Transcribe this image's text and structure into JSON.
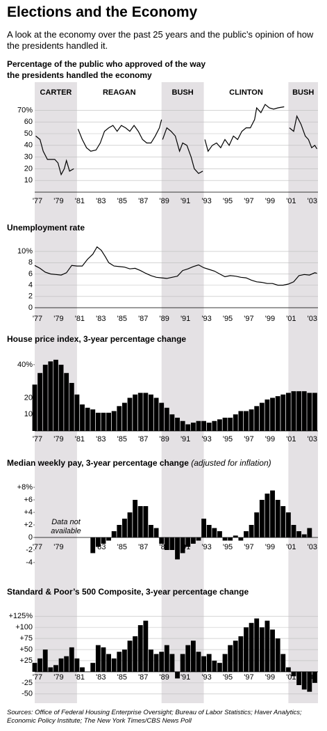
{
  "title": "Elections and the Economy",
  "subtitle": "A look at the economy over the past 25 years and the public’s opinion of how the presidents handled it.",
  "sources": "Sources: Office of Federal Housing Enterprise Oversight; Bureau of Labor Statistics; Haver Analytics; Economic Policy Institute; The New York Times/CBS News Poll",
  "chart_data": [
    {
      "type": "line",
      "title": "Percentage of the public who approved of the way the presidents handled the economy",
      "presidents": [
        "CARTER",
        "REAGAN",
        "BUSH",
        "CLINTON",
        "BUSH"
      ],
      "color": "#000000",
      "grid": true,
      "xlim": [
        1977,
        2003.8
      ],
      "ylim": [
        0,
        75
      ],
      "yticks": [
        {
          "value": 70,
          "label": "70%"
        },
        60,
        50,
        40,
        30,
        20,
        10
      ],
      "xticks": [
        {
          "value": 1977,
          "label": "'77"
        },
        {
          "value": 1979,
          "label": "'79"
        },
        {
          "value": 1981,
          "label": "'81"
        },
        {
          "value": 1983,
          "label": "'83"
        },
        {
          "value": 1985,
          "label": "'85"
        },
        {
          "value": 1987,
          "label": "'87"
        },
        {
          "value": 1989,
          "label": "'89"
        },
        {
          "value": 1991,
          "label": "'91"
        },
        {
          "value": 1993,
          "label": "'93"
        },
        {
          "value": 1995,
          "label": "'95"
        },
        {
          "value": 1997,
          "label": "'97"
        },
        {
          "value": 1999,
          "label": "'99"
        },
        {
          "value": 2001,
          "label": "'01"
        },
        {
          "value": 2003,
          "label": "'03"
        }
      ],
      "x": [
        1977.1,
        1977.5,
        1977.8,
        1978.2,
        1978.6,
        1978.9,
        1979.2,
        1979.5,
        1979.8,
        1980.0,
        1980.3,
        1980.7,
        1980.9,
        1981.1,
        1981.5,
        1981.9,
        1982.3,
        1982.8,
        1983.2,
        1983.6,
        1984.0,
        1984.4,
        1984.8,
        1985.2,
        1985.6,
        1986.0,
        1986.4,
        1986.8,
        1987.2,
        1987.6,
        1988.0,
        1988.4,
        1988.8,
        1989.0,
        1989.05,
        1989.1,
        1989.5,
        1989.9,
        1990.3,
        1990.7,
        1991.0,
        1991.4,
        1991.8,
        1992.1,
        1992.5,
        1992.9,
        1993.0,
        1993.1,
        1993.4,
        1993.8,
        1994.2,
        1994.6,
        1995.0,
        1995.4,
        1995.8,
        1996.2,
        1996.6,
        1997.0,
        1997.4,
        1997.8,
        1998.0,
        1998.4,
        1998.8,
        1999.2,
        1999.6,
        2000.0,
        2000.6,
        2000.9,
        2001.1,
        2001.5,
        2001.8,
        2002.2,
        2002.6,
        2002.9,
        2003.2,
        2003.5,
        2003.7
      ],
      "values": [
        48,
        45,
        35,
        28,
        28,
        28,
        25,
        15,
        20,
        27,
        18,
        20,
        null,
        54,
        45,
        38,
        35,
        36,
        42,
        52,
        55,
        57,
        52,
        57,
        55,
        52,
        57,
        52,
        45,
        42,
        42,
        48,
        55,
        62,
        null,
        45,
        55,
        52,
        48,
        35,
        42,
        40,
        30,
        20,
        16,
        18,
        null,
        45,
        35,
        40,
        42,
        38,
        45,
        40,
        48,
        45,
        52,
        55,
        55,
        62,
        72,
        68,
        75,
        72,
        71,
        72,
        73,
        null,
        55,
        52,
        65,
        58,
        48,
        45,
        38,
        40,
        37
      ]
    },
    {
      "type": "line",
      "title": "Unemployment rate",
      "color": "#000000",
      "grid": true,
      "xlim": [
        1977,
        2003.8
      ],
      "ylim": [
        0,
        11
      ],
      "yticks": [
        {
          "value": 10,
          "label": "10%"
        },
        8,
        6,
        4,
        2,
        0
      ],
      "xticks": [
        {
          "value": 1977,
          "label": "'77"
        },
        {
          "value": 1979,
          "label": "'79"
        },
        {
          "value": 1981,
          "label": "'81"
        },
        {
          "value": 1983,
          "label": "'83"
        },
        {
          "value": 1985,
          "label": "'85"
        },
        {
          "value": 1987,
          "label": "'87"
        },
        {
          "value": 1989,
          "label": "'89"
        },
        {
          "value": 1991,
          "label": "'91"
        },
        {
          "value": 1993,
          "label": "'93"
        },
        {
          "value": 1995,
          "label": "'95"
        },
        {
          "value": 1997,
          "label": "'97"
        },
        {
          "value": 1999,
          "label": "'99"
        },
        {
          "value": 2001,
          "label": "'01"
        },
        {
          "value": 2003,
          "label": "'03"
        }
      ],
      "x": [
        1977,
        1977.5,
        1978,
        1978.5,
        1979,
        1979.5,
        1980,
        1980.5,
        1981,
        1981.5,
        1982,
        1982.5,
        1982.9,
        1983.3,
        1983.7,
        1984,
        1984.5,
        1985,
        1985.5,
        1986,
        1986.5,
        1987,
        1987.5,
        1988,
        1988.5,
        1989,
        1989.5,
        1990,
        1990.5,
        1991,
        1991.5,
        1992,
        1992.5,
        1993,
        1993.5,
        1994,
        1994.5,
        1995,
        1995.5,
        1996,
        1996.5,
        1997,
        1997.5,
        1998,
        1998.5,
        1999,
        1999.5,
        2000,
        2000.5,
        2001,
        2001.5,
        2002,
        2002.5,
        2003,
        2003.5,
        2003.7
      ],
      "values": [
        7.5,
        7.0,
        6.3,
        6.0,
        5.9,
        5.8,
        6.2,
        7.5,
        7.4,
        7.4,
        8.6,
        9.5,
        10.8,
        10.2,
        9.0,
        8.0,
        7.4,
        7.3,
        7.2,
        6.9,
        7.0,
        6.6,
        6.1,
        5.7,
        5.4,
        5.3,
        5.2,
        5.4,
        5.6,
        6.6,
        6.9,
        7.3,
        7.6,
        7.1,
        6.8,
        6.5,
        6.0,
        5.5,
        5.7,
        5.6,
        5.4,
        5.3,
        4.9,
        4.6,
        4.5,
        4.3,
        4.3,
        4.0,
        4.0,
        4.2,
        4.6,
        5.7,
        5.9,
        5.8,
        6.2,
        6.1
      ]
    },
    {
      "type": "bar",
      "title": "House price index, 3-year percentage change",
      "color": "#000000",
      "grid": false,
      "xlim": [
        1977,
        2003.8
      ],
      "ylim": [
        0,
        45
      ],
      "yticks": [
        {
          "value": 40,
          "label": "40%"
        },
        20,
        10
      ],
      "xticks": [
        {
          "value": 1977,
          "label": "'77"
        },
        {
          "value": 1979,
          "label": "'79"
        },
        {
          "value": 1981,
          "label": "'81"
        },
        {
          "value": 1983,
          "label": "'83"
        },
        {
          "value": 1985,
          "label": "'85"
        },
        {
          "value": 1987,
          "label": "'87"
        },
        {
          "value": 1989,
          "label": "'89"
        },
        {
          "value": 1991,
          "label": "'91"
        },
        {
          "value": 1993,
          "label": "'93"
        },
        {
          "value": 1995,
          "label": "'95"
        },
        {
          "value": 1997,
          "label": "'97"
        },
        {
          "value": 1999,
          "label": "'99"
        },
        {
          "value": 2001,
          "label": "'01"
        },
        {
          "value": 2003,
          "label": "'03"
        }
      ],
      "x": [
        1977,
        1977.5,
        1978,
        1978.5,
        1979,
        1979.5,
        1980,
        1980.5,
        1981,
        1981.5,
        1982,
        1982.5,
        1983,
        1983.5,
        1984,
        1984.5,
        1985,
        1985.5,
        1986,
        1986.5,
        1987,
        1987.5,
        1988,
        1988.5,
        1989,
        1989.5,
        1990,
        1990.5,
        1991,
        1991.5,
        1992,
        1992.5,
        1993,
        1993.5,
        1994,
        1994.5,
        1995,
        1995.5,
        1996,
        1996.5,
        1997,
        1997.5,
        1998,
        1998.5,
        1999,
        1999.5,
        2000,
        2000.5,
        2001,
        2001.5,
        2002,
        2002.5,
        2003,
        2003.5
      ],
      "values": [
        28,
        35,
        40,
        42,
        43,
        40,
        35,
        29,
        22,
        16,
        14,
        13,
        11,
        11,
        11,
        12,
        15,
        17,
        20,
        22,
        23,
        23,
        22,
        20,
        17,
        14,
        10,
        8,
        6,
        4,
        5,
        6,
        6,
        5,
        6,
        7,
        8,
        8,
        10,
        12,
        12,
        13,
        15,
        17,
        19,
        20,
        21,
        22,
        23,
        24,
        24,
        24,
        23,
        23
      ]
    },
    {
      "type": "bar",
      "title": "Median weekly pay, 3-year percentage change",
      "title_note": "(adjusted for inflation)",
      "annotation": "Data not available",
      "color": "#000000",
      "grid": false,
      "xlim": [
        1977,
        2003.8
      ],
      "ylim": [
        -5,
        9
      ],
      "yticks": [
        {
          "value": 8,
          "label": "+8%"
        },
        {
          "value": 6,
          "label": "+6"
        },
        {
          "value": 4,
          "label": "+4"
        },
        {
          "value": 2,
          "label": "+2"
        },
        0,
        {
          "value": -2,
          "label": "-2"
        },
        {
          "value": -4,
          "label": "-4"
        }
      ],
      "xticks": [
        {
          "value": 1977,
          "label": "'77"
        },
        {
          "value": 1979,
          "label": "'79"
        },
        {
          "value": 1983,
          "label": "'83"
        },
        {
          "value": 1985,
          "label": "'85"
        },
        {
          "value": 1987,
          "label": "'87"
        },
        {
          "value": 1989,
          "label": "'89"
        },
        {
          "value": 1991,
          "label": "'91"
        },
        {
          "value": 1993,
          "label": "'93"
        },
        {
          "value": 1995,
          "label": "'95"
        },
        {
          "value": 1997,
          "label": "'97"
        },
        {
          "value": 1999,
          "label": "'99"
        },
        {
          "value": 2001,
          "label": "'01"
        },
        {
          "value": 2003,
          "label": "'03"
        }
      ],
      "x": [
        1982.5,
        1983,
        1983.5,
        1984,
        1984.5,
        1985,
        1985.5,
        1986,
        1986.5,
        1987,
        1987.5,
        1988,
        1988.5,
        1989,
        1989.5,
        1990,
        1990.5,
        1991,
        1991.5,
        1992,
        1992.5,
        1993,
        1993.5,
        1994,
        1994.5,
        1995,
        1995.5,
        1996,
        1996.5,
        1997,
        1997.5,
        1998,
        1998.5,
        1999,
        1999.5,
        2000,
        2000.5,
        2001,
        2001.5,
        2002,
        2002.5,
        2003
      ],
      "values": [
        -2.5,
        -1.5,
        -1,
        -0.5,
        1,
        2,
        3,
        4,
        6,
        5,
        5,
        2,
        1.5,
        -1,
        -2,
        -2,
        -3.5,
        -2.5,
        -1.5,
        -1,
        -0.5,
        3,
        2,
        1.5,
        1,
        -0.5,
        -0.5,
        0.3,
        -0.5,
        1,
        2,
        4,
        6,
        7,
        7.5,
        6,
        5,
        4,
        2,
        1,
        0.5,
        1.5
      ]
    },
    {
      "type": "bar",
      "title": "Standard & Poor’s 500 Composite, 3-year percentage change",
      "color": "#000000",
      "grid": true,
      "xlim": [
        1977,
        2003.8
      ],
      "ylim": [
        -55,
        130
      ],
      "yticks": [
        {
          "value": 125,
          "label": "+125%"
        },
        {
          "value": 100,
          "label": "+100"
        },
        {
          "value": 75,
          "label": "+75"
        },
        {
          "value": 50,
          "label": "+50"
        },
        {
          "value": 25,
          "label": "+25"
        },
        {
          "value": -25,
          "label": "-25"
        },
        {
          "value": -50,
          "label": "-50"
        }
      ],
      "xticks": [
        {
          "value": 1977,
          "label": "'77"
        },
        {
          "value": 1979,
          "label": "'79"
        },
        {
          "value": 1981,
          "label": "'81"
        },
        {
          "value": 1983,
          "label": "'83"
        },
        {
          "value": 1985,
          "label": "'85"
        },
        {
          "value": 1987,
          "label": "'87"
        },
        {
          "value": 1989,
          "label": "'89"
        },
        {
          "value": 1991,
          "label": "'91"
        },
        {
          "value": 1993,
          "label": "'93"
        },
        {
          "value": 1995,
          "label": "'95"
        },
        {
          "value": 1997,
          "label": "'97"
        },
        {
          "value": 1999,
          "label": "'99"
        },
        {
          "value": 2001,
          "label": "'01"
        },
        {
          "value": 2003,
          "label": "'03"
        }
      ],
      "x": [
        1977,
        1977.5,
        1978,
        1978.5,
        1979,
        1979.5,
        1980,
        1980.5,
        1981,
        1981.5,
        1982,
        1982.5,
        1983,
        1983.5,
        1984,
        1984.5,
        1985,
        1985.5,
        1986,
        1986.5,
        1987,
        1987.5,
        1988,
        1988.5,
        1989,
        1989.5,
        1990,
        1990.5,
        1991,
        1991.5,
        1992,
        1992.5,
        1993,
        1993.5,
        1994,
        1994.5,
        1995,
        1995.5,
        1996,
        1996.5,
        1997,
        1997.5,
        1998,
        1998.5,
        1999,
        1999.5,
        2000,
        2000.5,
        2001,
        2001.5,
        2002,
        2002.5,
        2003,
        2003.5
      ],
      "values": [
        20,
        30,
        50,
        10,
        15,
        30,
        35,
        55,
        30,
        10,
        0,
        20,
        60,
        55,
        40,
        30,
        45,
        50,
        70,
        80,
        105,
        115,
        50,
        40,
        45,
        60,
        40,
        -15,
        40,
        60,
        70,
        45,
        35,
        40,
        25,
        20,
        40,
        60,
        70,
        80,
        100,
        110,
        120,
        100,
        115,
        95,
        75,
        40,
        10,
        -10,
        -30,
        -40,
        -45,
        -25
      ]
    }
  ]
}
